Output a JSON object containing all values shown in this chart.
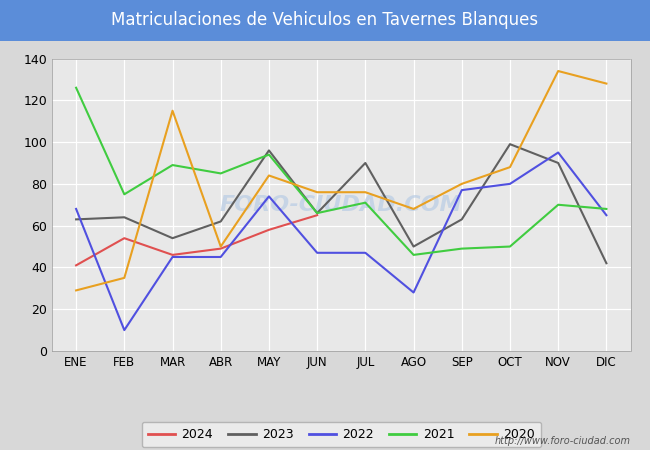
{
  "title": "Matriculaciones de Vehiculos en Tavernes Blanques",
  "months": [
    "ENE",
    "FEB",
    "MAR",
    "ABR",
    "MAY",
    "JUN",
    "JUL",
    "AGO",
    "SEP",
    "OCT",
    "NOV",
    "DIC"
  ],
  "series": {
    "2024": {
      "color": "#e05050",
      "data": [
        41,
        54,
        46,
        49,
        58,
        65,
        null,
        null,
        null,
        null,
        null,
        null
      ]
    },
    "2023": {
      "color": "#606060",
      "data": [
        63,
        64,
        54,
        62,
        96,
        66,
        90,
        50,
        63,
        99,
        90,
        42
      ]
    },
    "2022": {
      "color": "#5050e0",
      "data": [
        68,
        10,
        45,
        45,
        74,
        47,
        47,
        28,
        77,
        80,
        95,
        65
      ]
    },
    "2021": {
      "color": "#40cc40",
      "data": [
        126,
        75,
        89,
        85,
        94,
        66,
        71,
        46,
        49,
        50,
        70,
        68
      ]
    },
    "2020": {
      "color": "#e8a020",
      "data": [
        29,
        35,
        115,
        50,
        84,
        76,
        76,
        68,
        80,
        88,
        134,
        128
      ]
    }
  },
  "ylim": [
    0,
    140
  ],
  "yticks": [
    0,
    20,
    40,
    60,
    80,
    100,
    120,
    140
  ],
  "outer_background": "#d8d8d8",
  "plot_background": "#e8e8e8",
  "title_bg_color": "#5b8dd9",
  "title_text_color": "#ffffff",
  "watermark": "http://www.foro-ciudad.com",
  "foro_watermark": "FORO-CIUDAD.COM",
  "legend_years": [
    "2024",
    "2023",
    "2022",
    "2021",
    "2020"
  ],
  "legend_bg": "#f0f0f0",
  "legend_border": "#aaaaaa"
}
